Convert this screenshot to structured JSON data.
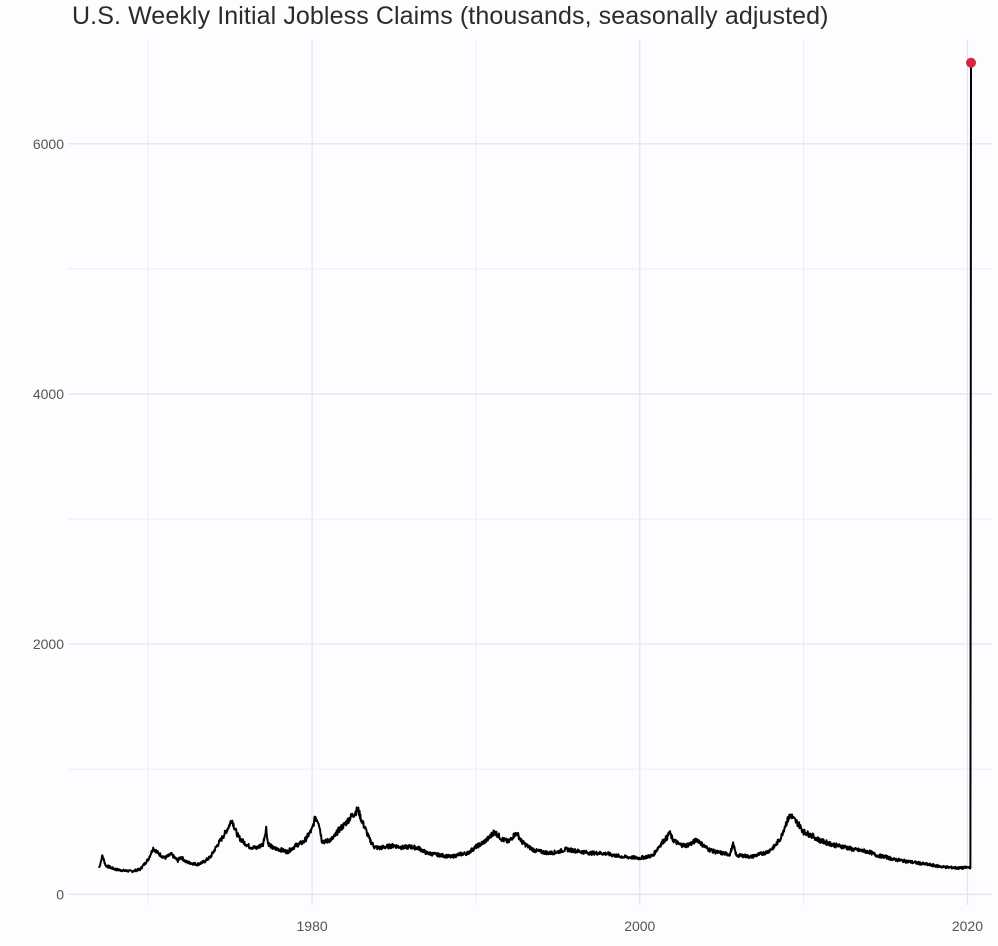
{
  "chart_data": {
    "type": "line",
    "title": "U.S. Weekly Initial Jobless Claims (thousands, seasonally adjusted)",
    "xlabel": "",
    "ylabel": "",
    "xlim": [
      1965.1,
      2021.5
    ],
    "ylim": [
      -85,
      6830
    ],
    "x_ticks": [
      1980,
      2000,
      2020
    ],
    "x_tick_labels": [
      "1980",
      "2000",
      "2020"
    ],
    "y_ticks": [
      0,
      2000,
      4000,
      6000
    ],
    "y_tick_labels": [
      "0",
      "2000",
      "4000",
      "6000"
    ],
    "grid": true,
    "legend": "none",
    "line_color": "#000000",
    "highlight_color": "#d7263d",
    "series": [
      {
        "x": [
          1967.0,
          1967.2,
          1967.4,
          1967.7,
          1968.0,
          1968.5,
          1969.0,
          1969.5,
          1970.0,
          1970.3,
          1970.6,
          1971.0,
          1971.4,
          1971.8,
          1972.0,
          1972.3,
          1972.6,
          1973.0,
          1973.4,
          1973.8,
          1974.2,
          1974.6,
          1974.9,
          1975.1,
          1975.3,
          1975.5,
          1975.8,
          1976.2,
          1976.6,
          1977.0,
          1977.2,
          1977.3,
          1977.6,
          1978.0,
          1978.5,
          1979.0,
          1979.5,
          1980.0,
          1980.2,
          1980.4,
          1980.6,
          1980.8,
          1981.0,
          1981.3,
          1981.6,
          1982.0,
          1982.3,
          1982.6,
          1982.8,
          1983.0,
          1983.2,
          1983.5,
          1983.8,
          1984.1,
          1984.5,
          1985.0,
          1985.5,
          1986.0,
          1986.5,
          1987.0,
          1987.5,
          1988.0,
          1988.5,
          1989.0,
          1989.5,
          1990.0,
          1990.4,
          1990.8,
          1991.1,
          1991.3,
          1991.6,
          1992.0,
          1992.3,
          1992.5,
          1992.8,
          1993.2,
          1993.6,
          1994.0,
          1994.5,
          1995.0,
          1995.5,
          1996.0,
          1996.5,
          1997.0,
          1997.5,
          1998.0,
          1998.5,
          1999.0,
          1999.5,
          2000.0,
          2000.4,
          2000.8,
          2001.1,
          2001.4,
          2001.7,
          2001.8,
          2002.0,
          2002.4,
          2002.8,
          2003.2,
          2003.5,
          2003.8,
          2004.2,
          2004.6,
          2005.0,
          2005.5,
          2005.7,
          2005.9,
          2006.3,
          2006.8,
          2007.3,
          2007.8,
          2008.2,
          2008.6,
          2008.9,
          2009.2,
          2009.4,
          2009.7,
          2010.0,
          2010.5,
          2011.0,
          2011.5,
          2012.0,
          2012.5,
          2013.0,
          2013.5,
          2014.0,
          2014.5,
          2015.0,
          2015.5,
          2016.0,
          2016.5,
          2017.0,
          2017.5,
          2018.0,
          2018.5,
          2019.0,
          2019.5,
          2020.0,
          2020.18,
          2020.2,
          2020.22
        ],
        "y": [
          212,
          310,
          230,
          215,
          200,
          190,
          185,
          200,
          280,
          370,
          330,
          290,
          320,
          270,
          300,
          260,
          250,
          240,
          260,
          300,
          390,
          470,
          540,
          600,
          520,
          460,
          420,
          380,
          370,
          400,
          530,
          410,
          370,
          360,
          340,
          390,
          420,
          520,
          620,
          580,
          430,
          420,
          430,
          450,
          510,
          560,
          610,
          650,
          680,
          600,
          540,
          440,
          380,
          370,
          380,
          390,
          375,
          380,
          370,
          330,
          320,
          310,
          300,
          320,
          330,
          380,
          410,
          450,
          500,
          480,
          440,
          420,
          470,
          490,
          420,
          380,
          350,
          340,
          330,
          340,
          360,
          350,
          340,
          330,
          330,
          325,
          310,
          300,
          295,
          290,
          300,
          310,
          370,
          420,
          460,
          500,
          440,
          400,
          390,
          410,
          440,
          400,
          360,
          340,
          330,
          320,
          400,
          310,
          310,
          300,
          320,
          340,
          380,
          450,
          560,
          640,
          600,
          560,
          500,
          470,
          430,
          410,
          390,
          380,
          360,
          350,
          340,
          310,
          300,
          280,
          270,
          260,
          250,
          240,
          230,
          220,
          215,
          210,
          215,
          215,
          3307,
          6648
        ]
      }
    ],
    "highlight_point": {
      "x": 2020.22,
      "y": 6648
    }
  }
}
